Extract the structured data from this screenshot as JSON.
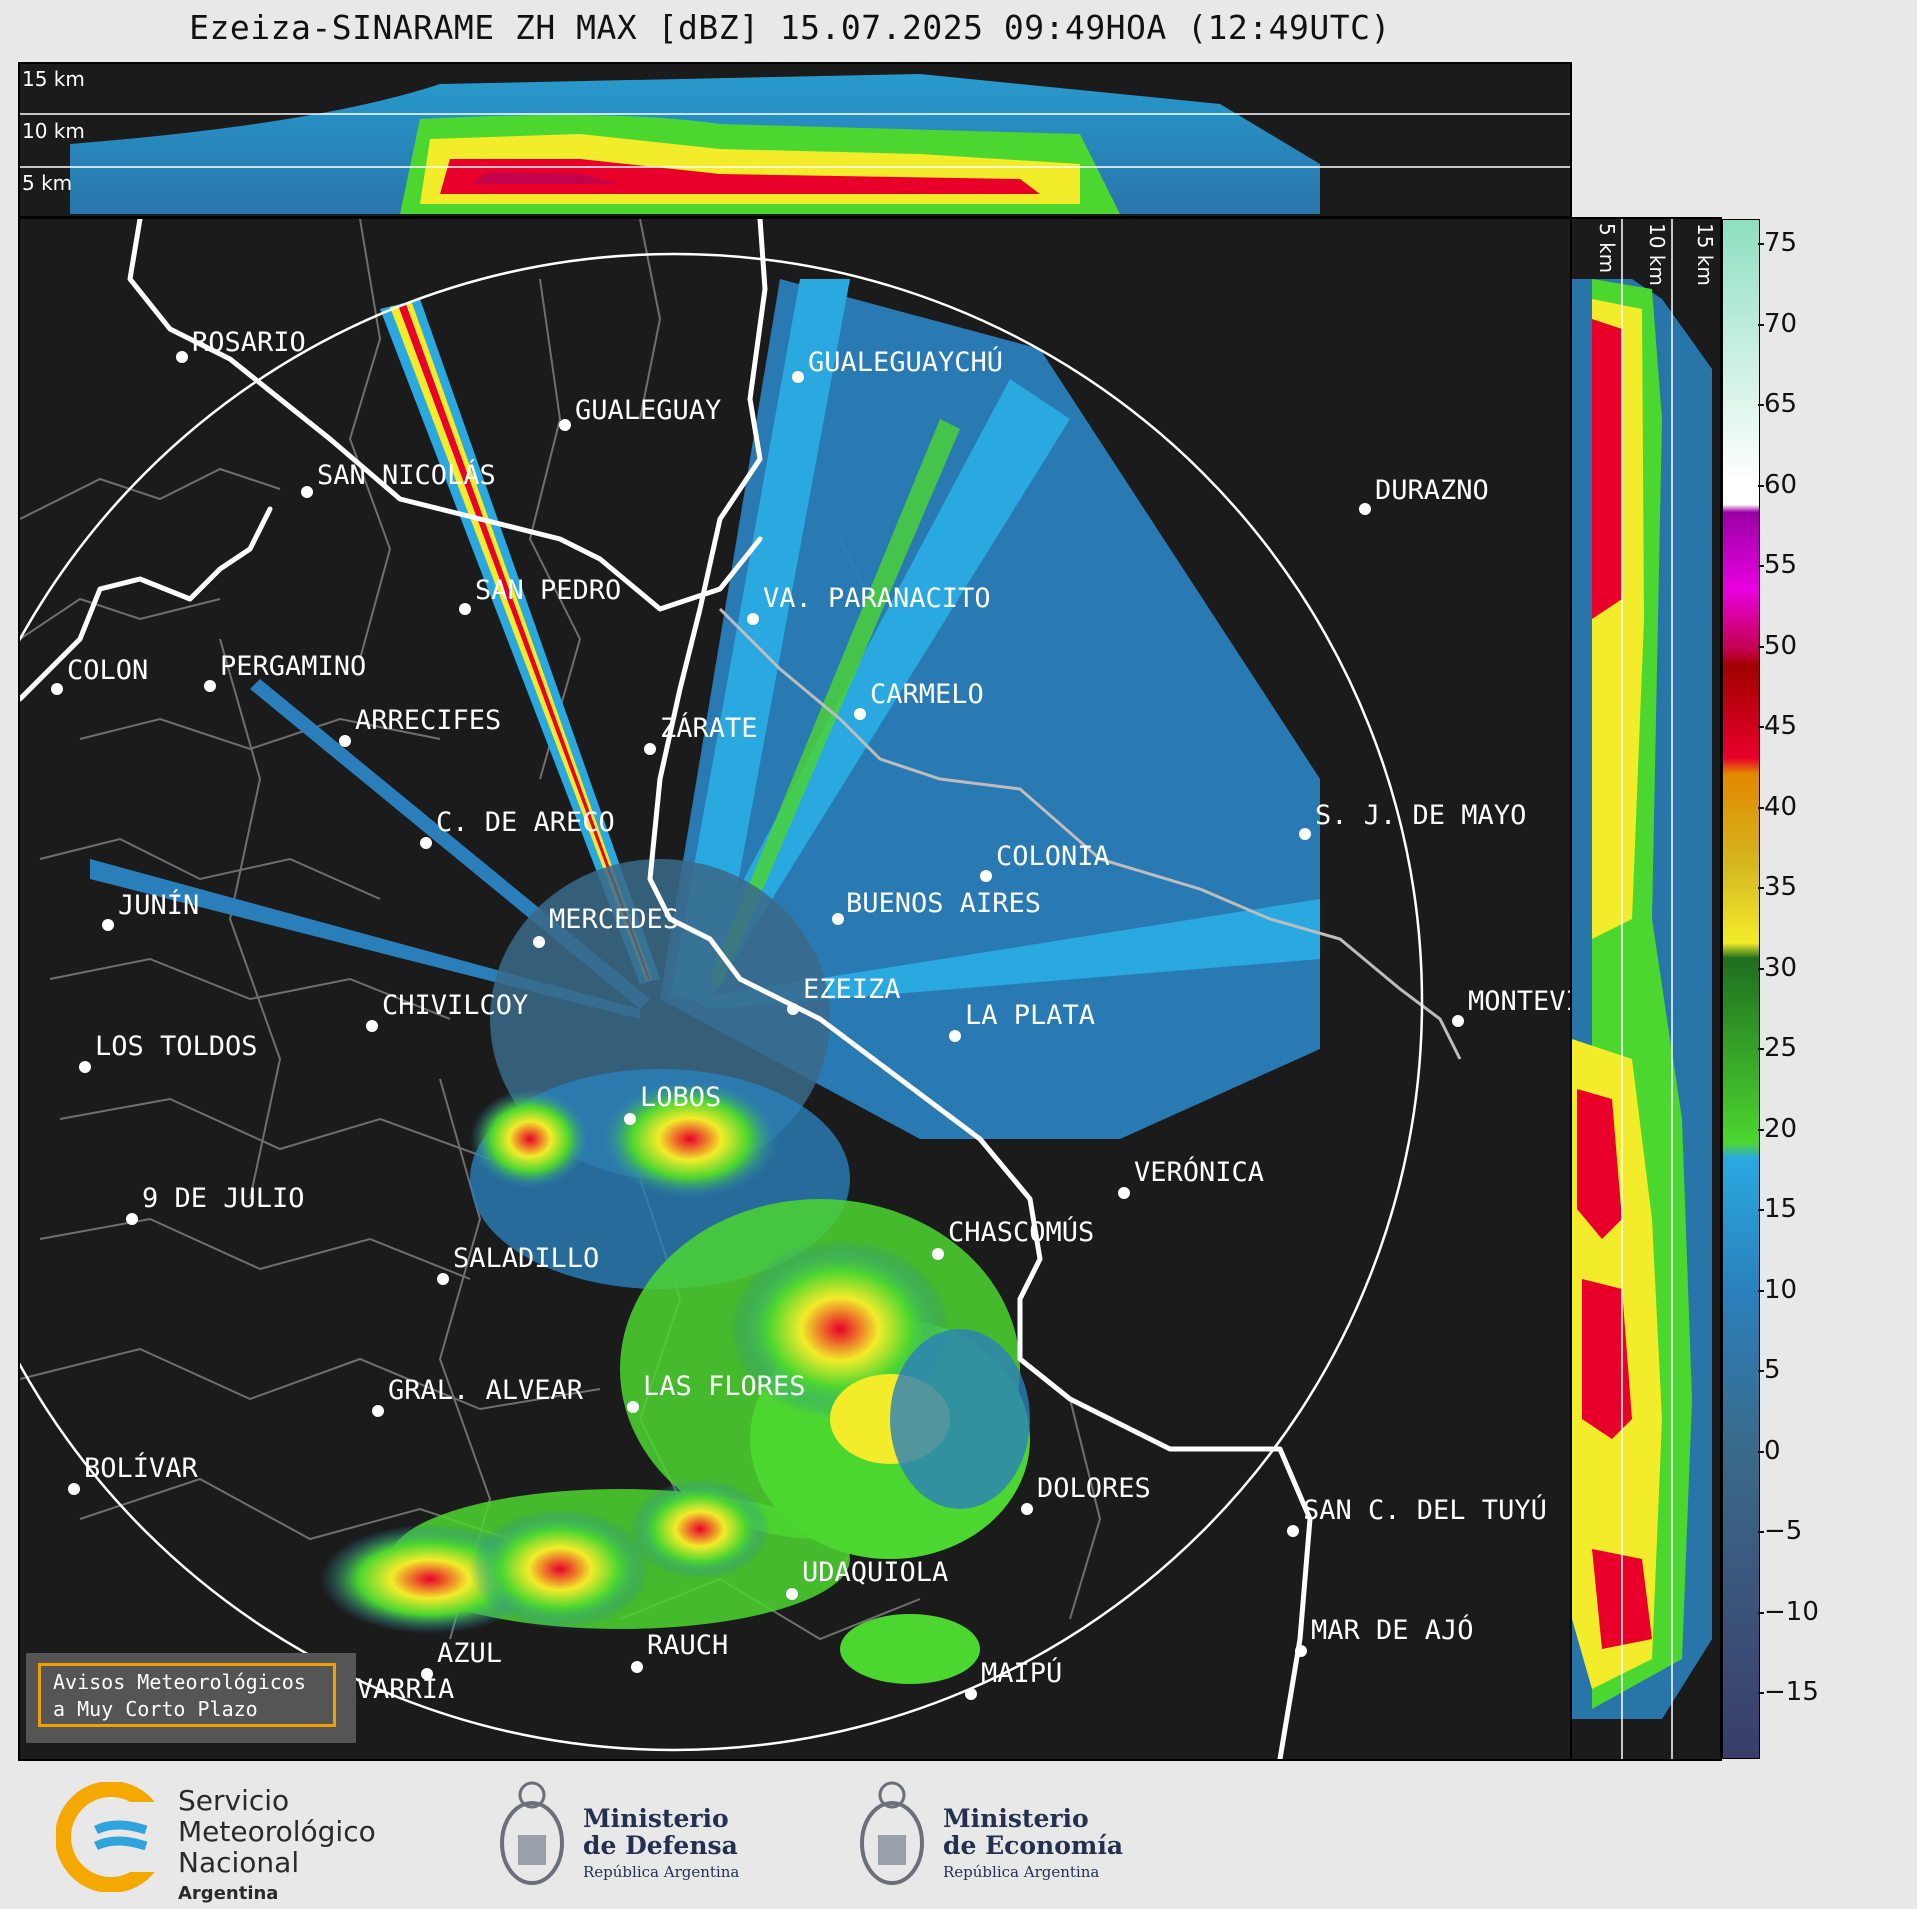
{
  "title": "Ezeiza-SINARAME ZH MAX [dBZ] 15.07.2025 09:49HOA (12:49UTC)",
  "top_panel": {
    "height_labels": [
      "15 km",
      "10 km",
      "5 km"
    ]
  },
  "side_panel": {
    "height_labels": [
      "5 km",
      "10 km",
      "15 km"
    ]
  },
  "colorbar": {
    "ticks": [
      "75",
      "70",
      "65",
      "60",
      "55",
      "50",
      "45",
      "40",
      "35",
      "30",
      "25",
      "20",
      "15",
      "10",
      "5",
      "0",
      "−5",
      "−10",
      "−15"
    ],
    "colors": {
      "teal_light": "#8edfc0",
      "white": "#ffffff",
      "purple": "#9a00a6",
      "magenta": "#e800e0",
      "crimson": "#c4004a",
      "dark_red": "#a00000",
      "red": "#e8002a",
      "orange": "#e28800",
      "gold": "#d4b820",
      "yellow": "#f2ec2a",
      "dark_green": "#1f6e1f",
      "green": "#4cd630",
      "cyan": "#2aa8e0",
      "blue": "#2a7fba",
      "steel": "#3a6a8a",
      "navy": "#3a3d6a"
    }
  },
  "cities": [
    {
      "name": "ROSARIO"
    },
    {
      "name": "GUALEGUAYCHÚ"
    },
    {
      "name": "GUALEGUAY"
    },
    {
      "name": "SAN NICOLÁS"
    },
    {
      "name": "DURAZNO"
    },
    {
      "name": "SAN PEDRO"
    },
    {
      "name": "VA. PARANACITO"
    },
    {
      "name": "COLON"
    },
    {
      "name": "PERGAMINO"
    },
    {
      "name": "CARMELO"
    },
    {
      "name": "ARRECIFES"
    },
    {
      "name": "ZÁRATE"
    },
    {
      "name": "C. DE ARECO"
    },
    {
      "name": "S. J. DE MAYO"
    },
    {
      "name": "COLONIA"
    },
    {
      "name": "JUNÍN"
    },
    {
      "name": "BUENOS AIRES"
    },
    {
      "name": "MERCEDES"
    },
    {
      "name": "EZEIZA"
    },
    {
      "name": "MONTEVIDEO"
    },
    {
      "name": "CHIVILCOY"
    },
    {
      "name": "LA PLATA"
    },
    {
      "name": "LOS TOLDOS"
    },
    {
      "name": "LOBOS"
    },
    {
      "name": "VERÓNICA"
    },
    {
      "name": "9 DE JULIO"
    },
    {
      "name": "CHASCOMÚS"
    },
    {
      "name": "SALADILLO"
    },
    {
      "name": "GRAL. ALVEAR"
    },
    {
      "name": "LAS FLORES"
    },
    {
      "name": "BOLÍVAR"
    },
    {
      "name": "DOLORES"
    },
    {
      "name": "SAN C. DEL TUYÚ"
    },
    {
      "name": "UDAQUIOLA"
    },
    {
      "name": "MAR DE AJÓ"
    },
    {
      "name": "RAUCH"
    },
    {
      "name": "AZUL"
    },
    {
      "name": "OLAVARRÍA"
    },
    {
      "name": "MAIPÚ"
    }
  ],
  "alert_box": {
    "line1": "Avisos Meteorológicos",
    "line2": "a Muy Corto Plazo"
  },
  "footer": {
    "smn": {
      "line1": "Servicio",
      "line2": "Meteorológico",
      "line3": "Nacional",
      "line4": "Argentina"
    },
    "defensa": {
      "line1": "Ministerio",
      "line2": "de Defensa",
      "line3": "República Argentina"
    },
    "economia": {
      "line1": "Ministerio",
      "line2": "de Economía",
      "line3": "República Argentina"
    }
  }
}
